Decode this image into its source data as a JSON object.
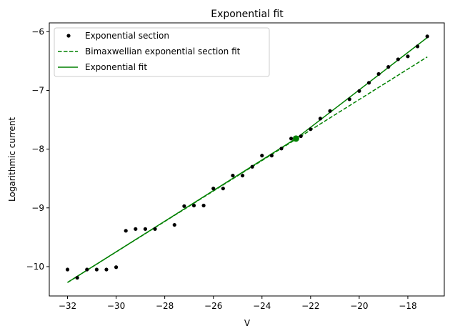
{
  "chart_data": {
    "type": "scatter",
    "title": "Exponential fit",
    "xlabel": "V",
    "ylabel": "Logarithmic current",
    "xlim": [
      -32.75,
      -16.5
    ],
    "ylim": [
      -10.5,
      -5.85
    ],
    "xticks": [
      -32,
      -30,
      -28,
      -26,
      -24,
      -22,
      -20,
      -18
    ],
    "yticks": [
      -10,
      -9,
      -8,
      -7,
      -6
    ],
    "grid": false,
    "legend_position": "top-left",
    "series": [
      {
        "name": "Exponential section",
        "kind": "scatter",
        "color": "#000000",
        "points": [
          [
            -32.0,
            -10.05
          ],
          [
            -31.6,
            -10.19
          ],
          [
            -31.2,
            -10.05
          ],
          [
            -30.8,
            -10.05
          ],
          [
            -30.4,
            -10.05
          ],
          [
            -30.0,
            -10.01
          ],
          [
            -29.6,
            -9.39
          ],
          [
            -29.2,
            -9.36
          ],
          [
            -28.8,
            -9.36
          ],
          [
            -28.4,
            -9.36
          ],
          [
            -27.6,
            -9.29
          ],
          [
            -27.2,
            -8.97
          ],
          [
            -26.8,
            -8.96
          ],
          [
            -26.4,
            -8.96
          ],
          [
            -26.0,
            -8.67
          ],
          [
            -25.6,
            -8.67
          ],
          [
            -25.2,
            -8.45
          ],
          [
            -24.8,
            -8.45
          ],
          [
            -24.4,
            -8.3
          ],
          [
            -24.0,
            -8.11
          ],
          [
            -23.6,
            -8.11
          ],
          [
            -23.2,
            -7.99
          ],
          [
            -22.8,
            -7.82
          ],
          [
            -22.4,
            -7.78
          ],
          [
            -22.0,
            -7.66
          ],
          [
            -21.6,
            -7.48
          ],
          [
            -21.2,
            -7.35
          ],
          [
            -20.4,
            -7.15
          ],
          [
            -20.0,
            -7.01
          ],
          [
            -19.6,
            -6.87
          ],
          [
            -19.2,
            -6.72
          ],
          [
            -18.8,
            -6.6
          ],
          [
            -18.4,
            -6.47
          ],
          [
            -18.0,
            -6.42
          ],
          [
            -17.6,
            -6.25
          ],
          [
            -17.2,
            -6.08
          ]
        ]
      },
      {
        "name": "Bimaxwellian exponential section fit",
        "kind": "line",
        "dashed": true,
        "color": "#008000",
        "points": [
          [
            -32.0,
            -10.27
          ],
          [
            -17.2,
            -6.43
          ]
        ]
      },
      {
        "name": "Exponential fit",
        "kind": "line",
        "dashed": false,
        "color": "#008000",
        "points": [
          [
            -32.0,
            -10.27
          ],
          [
            -22.6,
            -7.82
          ],
          [
            -17.2,
            -6.1
          ]
        ]
      }
    ],
    "highlight_point": {
      "x": -22.6,
      "y": -7.82,
      "color": "#008000"
    }
  }
}
